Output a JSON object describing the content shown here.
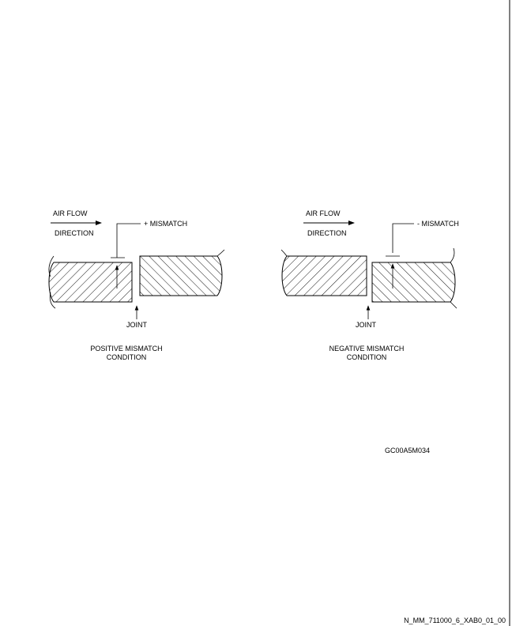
{
  "left_panel": {
    "airflow_label": "AIR FLOW",
    "direction_label": "DIRECTION",
    "mismatch_label": "+ MISMATCH",
    "joint_label": "JOINT",
    "caption_line1": "POSITIVE MISMATCH",
    "caption_line2": "CONDITION"
  },
  "right_panel": {
    "airflow_label": "AIR FLOW",
    "direction_label": "DIRECTION",
    "mismatch_label": "- MISMATCH",
    "joint_label": "JOINT",
    "caption_line1": "NEGATIVE MISMATCH",
    "caption_line2": "CONDITION"
  },
  "figure_code": "GC00A5M034",
  "footer_ref": "N_MM_711000_6_XAB0_01_00"
}
